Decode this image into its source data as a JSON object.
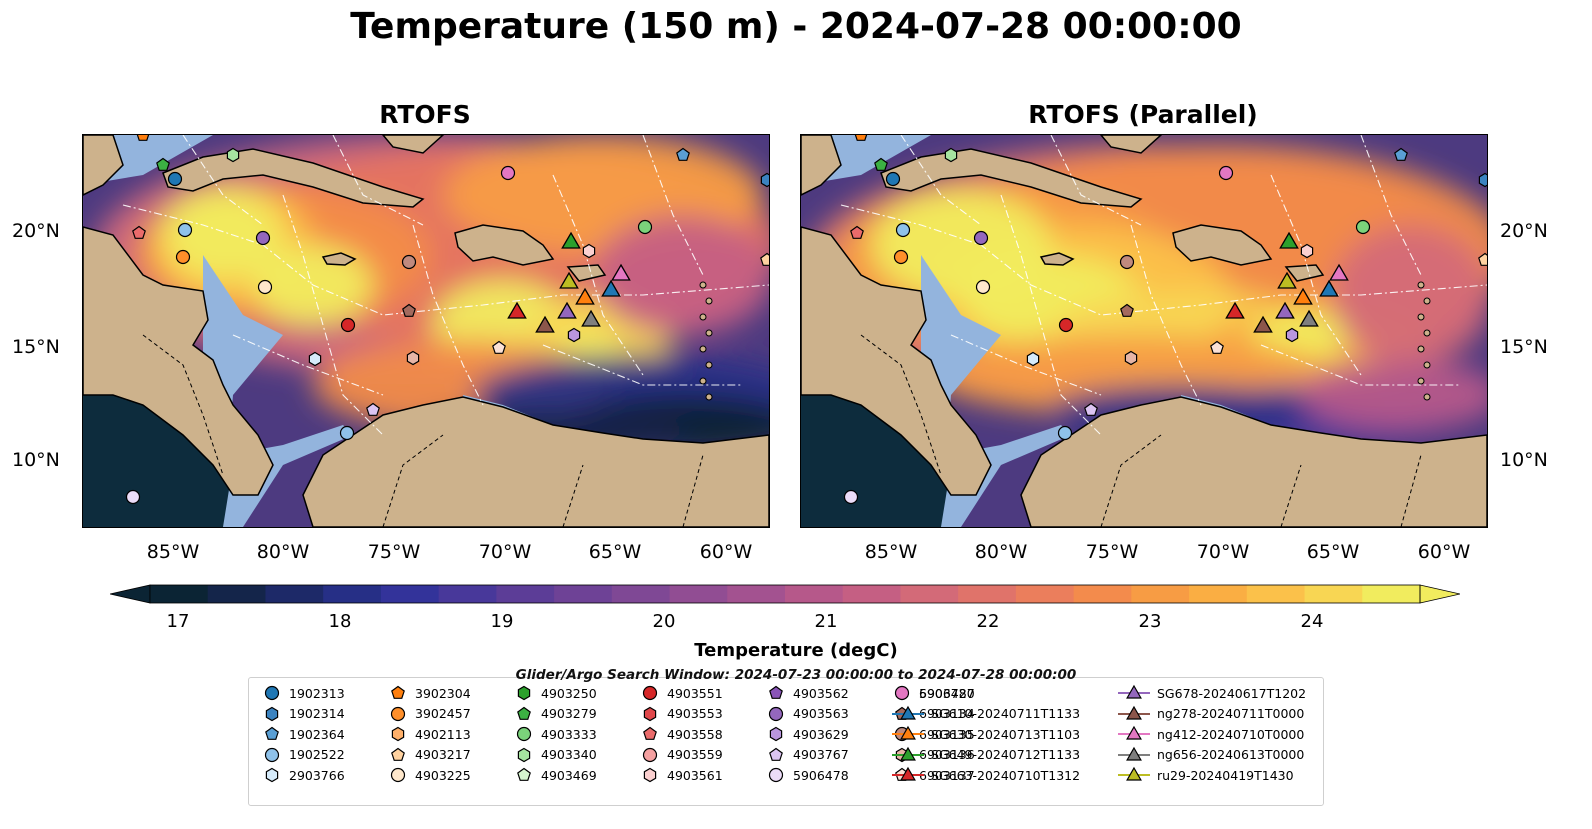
{
  "title": "Temperature (150 m) - 2024-07-28 00:00:00",
  "panels": [
    {
      "title": "RTOFS"
    },
    {
      "title": "RTOFS (Parallel)"
    }
  ],
  "lat_labels": [
    "20°N",
    "15°N",
    "10°N"
  ],
  "lon_labels": [
    "85°W",
    "80°W",
    "75°W",
    "70°W",
    "65°W",
    "60°W"
  ],
  "colorbar": {
    "label": "Temperature (degC)",
    "min": 16.5,
    "max": 24.5,
    "ticks": [
      "17",
      "18",
      "19",
      "20",
      "21",
      "22",
      "23",
      "24"
    ],
    "colors": [
      "#0b2434",
      "#14254a",
      "#1d2968",
      "#262f86",
      "#33339a",
      "#48389a",
      "#5c3d97",
      "#6e4296",
      "#7f4895",
      "#914d93",
      "#a35290",
      "#b6588a",
      "#c55f83",
      "#d36a78",
      "#e0736a",
      "#eb7e5c",
      "#f38b4c",
      "#f79c44",
      "#faae43",
      "#fbc14a",
      "#f8d653",
      "#f1ec5e"
    ],
    "extend": "both"
  },
  "search_window": "Glider/Argo Search Window: 2024-07-23 00:00:00 to 2024-07-28 00:00:00",
  "legend": [
    {
      "label": "1902313",
      "marker": "circle",
      "color": "#1f77b4"
    },
    {
      "label": "1902314",
      "marker": "hexagon",
      "color": "#3b83c0"
    },
    {
      "label": "1902364",
      "marker": "pentagon",
      "color": "#5a9fd4"
    },
    {
      "label": "1902522",
      "marker": "circle",
      "color": "#8fc2ea"
    },
    {
      "label": "2903766",
      "marker": "hexagon",
      "color": "#d6ebfa"
    },
    {
      "label": "3902304",
      "marker": "pentagon",
      "color": "#ff7f0e"
    },
    {
      "label": "3902457",
      "marker": "circle",
      "color": "#ff8f2a"
    },
    {
      "label": "4902113",
      "marker": "hexagon",
      "color": "#ffb06a"
    },
    {
      "label": "4903217",
      "marker": "pentagon",
      "color": "#ffd2a0"
    },
    {
      "label": "4903225",
      "marker": "circle",
      "color": "#ffe8cc"
    },
    {
      "label": "4903250",
      "marker": "hexagon",
      "color": "#2ca02c"
    },
    {
      "label": "4903279",
      "marker": "pentagon",
      "color": "#3cb043"
    },
    {
      "label": "4903333",
      "marker": "circle",
      "color": "#7bd37b"
    },
    {
      "label": "4903340",
      "marker": "hexagon",
      "color": "#a6e4a0"
    },
    {
      "label": "4903469",
      "marker": "pentagon",
      "color": "#d6f5cf"
    },
    {
      "label": "4903551",
      "marker": "circle",
      "color": "#d62728"
    },
    {
      "label": "4903553",
      "marker": "hexagon",
      "color": "#e0474a"
    },
    {
      "label": "4903558",
      "marker": "pentagon",
      "color": "#ea6b6b"
    },
    {
      "label": "4903559",
      "marker": "circle",
      "color": "#f4a0a0"
    },
    {
      "label": "4903561",
      "marker": "hexagon",
      "color": "#fbd0d0"
    },
    {
      "label": "4903562",
      "marker": "pentagon",
      "color": "#8a55b8"
    },
    {
      "label": "4903563",
      "marker": "circle",
      "color": "#9467bd"
    },
    {
      "label": "4903629",
      "marker": "hexagon",
      "color": "#b996de"
    },
    {
      "label": "4903767",
      "marker": "pentagon",
      "color": "#dcc4f2"
    },
    {
      "label": "5906478",
      "marker": "circle",
      "color": "#ecdcf8"
    },
    {
      "label": "5906480",
      "marker": "hexagon",
      "color": "#8c564b"
    },
    {
      "label": "6903134",
      "marker": "pentagon",
      "color": "#a46a5e"
    },
    {
      "label": "6903135",
      "marker": "circle",
      "color": "#c08a7e"
    },
    {
      "label": "6903136",
      "marker": "hexagon",
      "color": "#e6b5a6"
    },
    {
      "label": "6903137",
      "marker": "pentagon",
      "color": "#fbe1d5"
    },
    {
      "label": "6903727",
      "marker": "circle",
      "color": "#e377c2"
    },
    {
      "label": "SG610-20240711T1133",
      "marker": "triangle",
      "color": "#1f77b4"
    },
    {
      "label": "SG630-20240713T1103",
      "marker": "triangle",
      "color": "#ff7f0e"
    },
    {
      "label": "SG649-20240712T1133",
      "marker": "triangle",
      "color": "#2ca02c"
    },
    {
      "label": "SG663-20240710T1312",
      "marker": "triangle",
      "color": "#d62728"
    },
    {
      "label": "SG678-20240617T1202",
      "marker": "triangle",
      "color": "#9467bd"
    },
    {
      "label": "ng278-20240711T0000",
      "marker": "triangle",
      "color": "#8c564b"
    },
    {
      "label": "ng412-20240710T0000",
      "marker": "triangle",
      "color": "#e377c2"
    },
    {
      "label": "ng656-20240613T0000",
      "marker": "triangle",
      "color": "#7f7f7f"
    },
    {
      "label": "ru29-20240419T1430",
      "marker": "triangle",
      "color": "#bcbd22"
    }
  ]
}
